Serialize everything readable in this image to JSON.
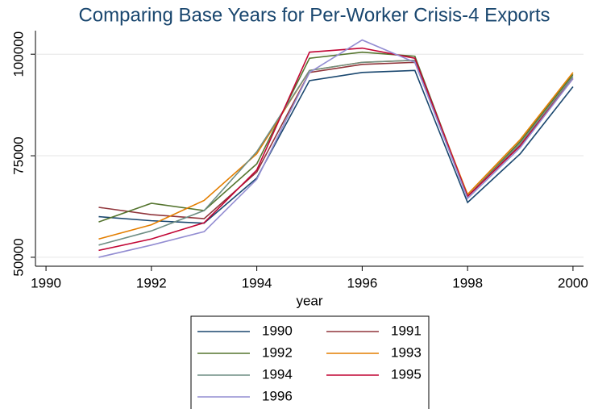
{
  "chart_data": {
    "type": "line",
    "title": "Comparing Base Years for Per-Worker Crisis-4 Exports",
    "x_label": "year",
    "x": [
      1991,
      1992,
      1993,
      1994,
      1995,
      1996,
      1997,
      1998,
      1999,
      2000
    ],
    "xlim": [
      1989.8,
      2000.2
    ],
    "xticks": [
      1990,
      1992,
      1994,
      1996,
      1998,
      2000
    ],
    "ylim": [
      47800,
      105800
    ],
    "yticks": [
      50000,
      75000,
      100000
    ],
    "grid": true,
    "series": [
      {
        "name": "1990",
        "color": "#1a476f",
        "values": [
          60000,
          59000,
          58400,
          69500,
          93500,
          95500,
          96000,
          63500,
          75500,
          92000
        ]
      },
      {
        "name": "1991",
        "color": "#90353b",
        "values": [
          62300,
          60500,
          59500,
          71000,
          95500,
          97500,
          98000,
          65000,
          77500,
          94000
        ]
      },
      {
        "name": "1992",
        "color": "#55752f",
        "values": [
          58700,
          63300,
          61500,
          73000,
          99000,
          100500,
          99500,
          65000,
          78500,
          95000
        ]
      },
      {
        "name": "1993",
        "color": "#e37e00",
        "values": [
          54500,
          58000,
          64000,
          75500,
          96000,
          98000,
          98500,
          65500,
          79000,
          95500
        ]
      },
      {
        "name": "1994",
        "color": "#6e8e84",
        "values": [
          53000,
          56500,
          61500,
          76000,
          96000,
          98000,
          98500,
          65000,
          78000,
          94500
        ]
      },
      {
        "name": "1995",
        "color": "#c10534",
        "values": [
          51700,
          54500,
          58500,
          71500,
          100500,
          101500,
          99000,
          65000,
          77500,
          94000
        ]
      },
      {
        "name": "1996",
        "color": "#938dd2",
        "values": [
          50000,
          53000,
          56300,
          69200,
          95500,
          103500,
          98000,
          64500,
          77000,
          94000
        ]
      }
    ]
  }
}
